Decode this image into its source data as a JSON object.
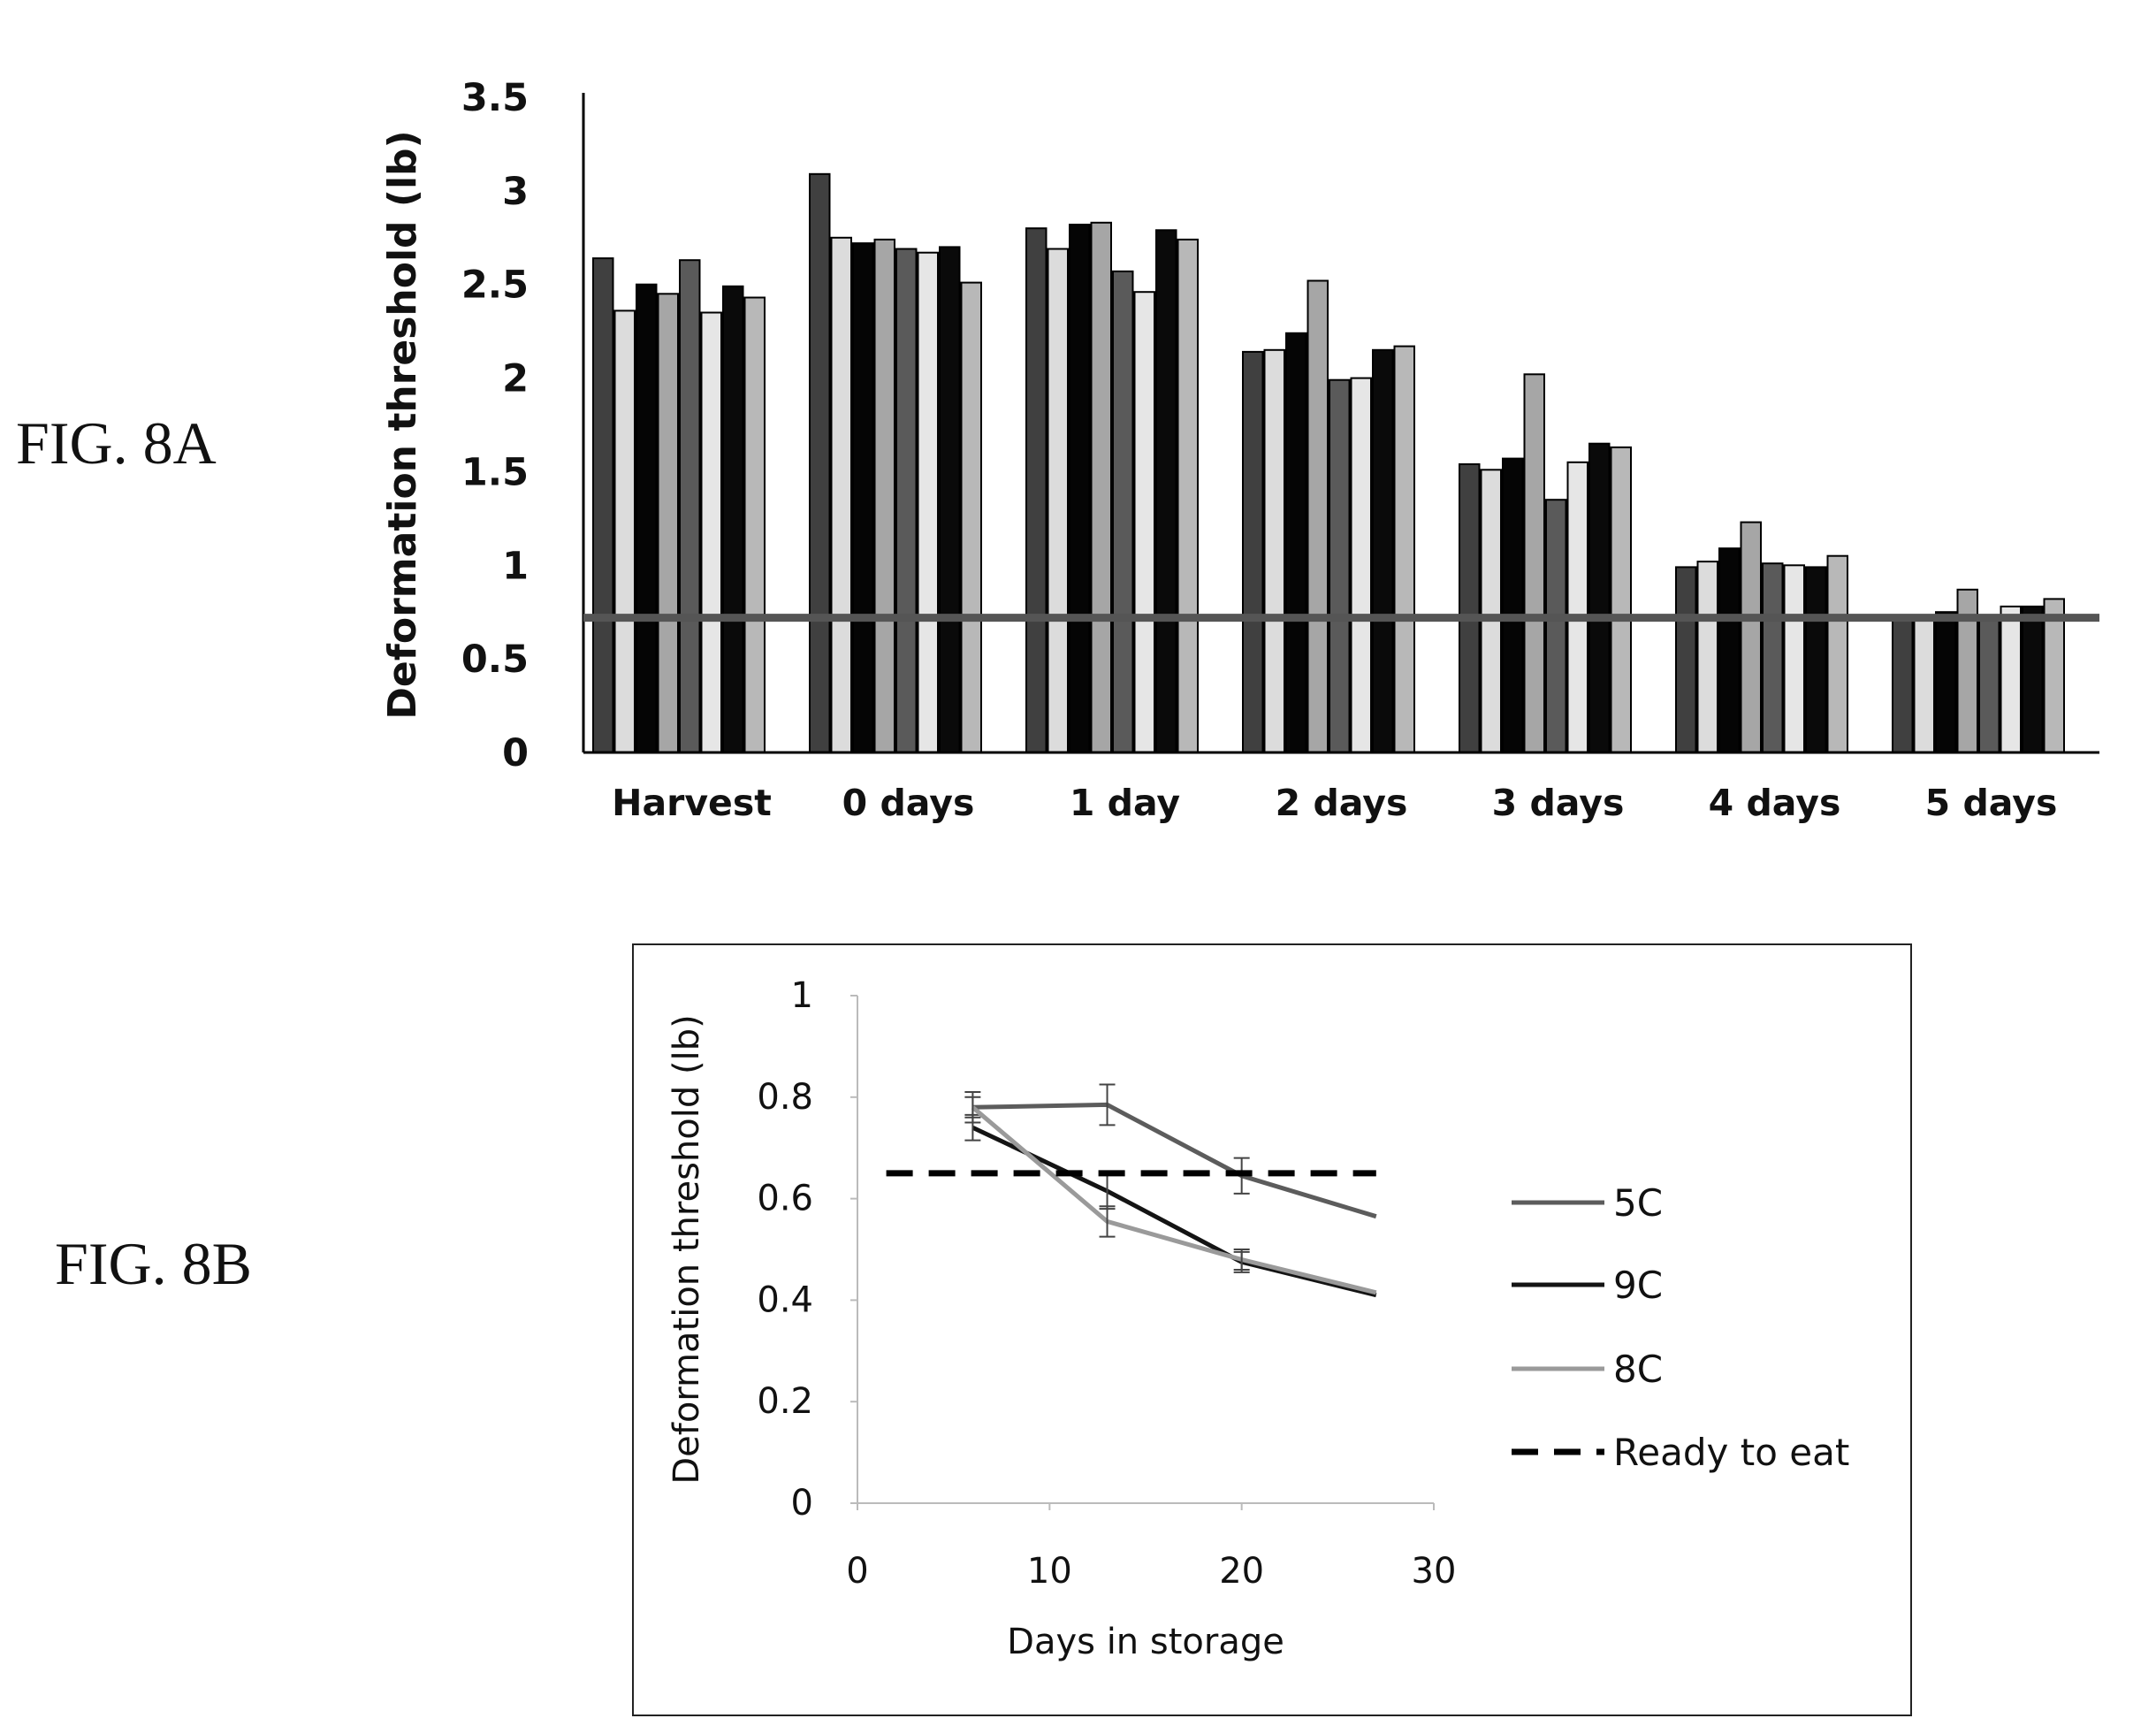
{
  "figures": [
    {
      "label": "FIG. 8A"
    },
    {
      "label": "FIG. 8B"
    }
  ],
  "chart_data": [
    {
      "type": "bar",
      "title": "",
      "xlabel": "",
      "ylabel": "Deformation threshold (lb)",
      "ylim": [
        0,
        3.5
      ],
      "yticks": [
        "0",
        "0.5",
        "1",
        "1.5",
        "2",
        "2.5",
        "3",
        "3.5"
      ],
      "categories": [
        "Harvest",
        "0 days",
        "1 day",
        "2 days",
        "3 days",
        "4 days",
        "5 days"
      ],
      "series_colors": [
        "#404040",
        "#dcdcdc",
        "#050505",
        "#a6a6a6",
        "#5a5a5a",
        "#e6e6e6",
        "#0a0a0a",
        "#b8b8b8"
      ],
      "series": [
        {
          "values": [
            2.64,
            3.09,
            2.8,
            2.14,
            1.54,
            0.99,
            0.72
          ]
        },
        {
          "values": [
            2.36,
            2.75,
            2.69,
            2.15,
            1.51,
            1.02,
            0.72
          ]
        },
        {
          "values": [
            2.5,
            2.72,
            2.82,
            2.24,
            1.57,
            1.09,
            0.75
          ]
        },
        {
          "values": [
            2.45,
            2.74,
            2.83,
            2.52,
            2.02,
            1.23,
            0.87
          ]
        },
        {
          "values": [
            2.63,
            2.69,
            2.57,
            1.99,
            1.35,
            1.01,
            0.73
          ]
        },
        {
          "values": [
            2.35,
            2.67,
            2.46,
            2.0,
            1.55,
            1.0,
            0.78
          ]
        },
        {
          "values": [
            2.49,
            2.7,
            2.79,
            2.15,
            1.65,
            0.99,
            0.78
          ]
        },
        {
          "values": [
            2.43,
            2.51,
            2.74,
            2.17,
            1.63,
            1.05,
            0.82
          ]
        }
      ],
      "reference_line": 0.72,
      "reference_color": "#555555",
      "grid": false,
      "legend": "none"
    },
    {
      "type": "line",
      "title": "",
      "xlabel": "Days in storage",
      "ylabel": "Deformation threshold (lb)",
      "xlim": [
        0,
        30
      ],
      "ylim": [
        0,
        1
      ],
      "xticks": [
        "0",
        "10",
        "20",
        "30"
      ],
      "yticks": [
        "0",
        "0.2",
        "0.4",
        "0.6",
        "0.8",
        "1"
      ],
      "series": [
        {
          "name": "5C",
          "color": "#5c5c5c",
          "x": [
            6,
            13,
            20,
            27
          ],
          "y": [
            0.78,
            0.785,
            0.645,
            0.565
          ],
          "err": [
            0.03,
            0.04,
            0.035,
            0
          ]
        },
        {
          "name": "9C",
          "color": "#141414",
          "x": [
            6,
            13,
            20,
            27
          ],
          "y": [
            0.74,
            0.615,
            0.475,
            0.41
          ],
          "err": [
            0.025,
            0.035,
            0.02,
            0
          ]
        },
        {
          "name": "8C",
          "color": "#9a9a9a",
          "x": [
            6,
            13,
            20,
            27
          ],
          "y": [
            0.78,
            0.555,
            0.48,
            0.415
          ],
          "err": [
            0.02,
            0.03,
            0.02,
            0
          ]
        },
        {
          "name": "Ready to eat",
          "color": "#000000",
          "dashed": true,
          "x": [
            1.5,
            27
          ],
          "y": [
            0.65,
            0.65
          ]
        }
      ],
      "grid": false,
      "legend": "right"
    }
  ]
}
